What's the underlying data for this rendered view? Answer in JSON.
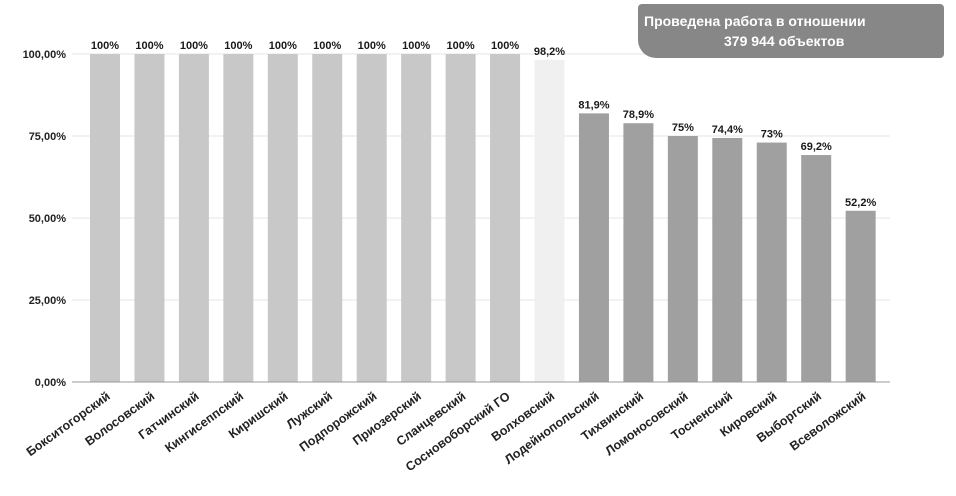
{
  "callout": {
    "line1": "Проведена  работа в отношении",
    "line2": "379 944 объектов",
    "color": "#878787"
  },
  "chart_data": {
    "type": "bar",
    "title": "",
    "xlabel": "",
    "ylabel": "",
    "ylim": [
      0,
      100
    ],
    "yticks": [
      0,
      25,
      50,
      75,
      100
    ],
    "ytick_labels": [
      "0,00%",
      "25,00%",
      "50,00%",
      "75,00%",
      "100,00%"
    ],
    "grid": true,
    "categories": [
      "Бокситогорский",
      "Волосовский",
      "Гатчинский",
      "Кингисеппский",
      "Киришский",
      "Лужский",
      "Подпорожский",
      "Приозерский",
      "Сланцевский",
      "Сосновоборский ГО",
      "Волховский",
      "Лодейнопольский",
      "Тихвинский",
      "Ломоносовский",
      "Тосненский",
      "Кировский",
      "Выборгский",
      "Всеволожский"
    ],
    "values": [
      100,
      100,
      100,
      100,
      100,
      100,
      100,
      100,
      100,
      100,
      98.2,
      81.9,
      78.9,
      75,
      74.4,
      73,
      69.2,
      52.2
    ],
    "data_labels": [
      "100%",
      "100%",
      "100%",
      "100%",
      "100%",
      "100%",
      "100%",
      "100%",
      "100%",
      "100%",
      "98,2%",
      "81,9%",
      "78,9%",
      "75%",
      "74,4%",
      "73%",
      "69,2%",
      "52,2%"
    ],
    "bar_colors": [
      "#c8c8c8",
      "#c8c8c8",
      "#c8c8c8",
      "#c8c8c8",
      "#c8c8c8",
      "#c8c8c8",
      "#c8c8c8",
      "#c8c8c8",
      "#c8c8c8",
      "#c8c8c8",
      "#f0f0f0",
      "#a0a0a0",
      "#a0a0a0",
      "#a0a0a0",
      "#a0a0a0",
      "#a0a0a0",
      "#a0a0a0",
      "#a0a0a0"
    ]
  }
}
